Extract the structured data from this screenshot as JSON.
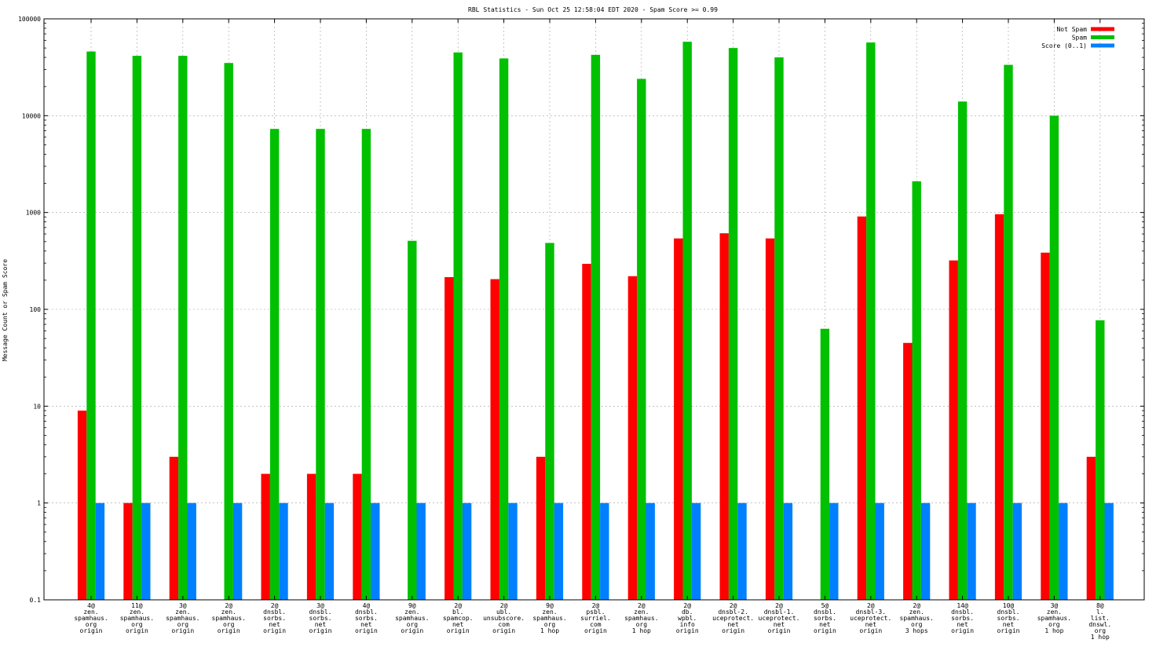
{
  "chart_data": {
    "type": "bar",
    "title": "RBL Statistics - Sun Oct 25 12:58:04 EDT 2020 - Spam Score >= 0.99",
    "xlabel": "",
    "ylabel": "Message Count or Spam Score",
    "yscale": "log",
    "ylim": [
      0.1,
      100000
    ],
    "yticks": [
      0.1,
      1,
      10,
      100,
      1000,
      10000,
      100000
    ],
    "ytick_labels": [
      "0.1",
      "1",
      "10",
      "100",
      "1000",
      "10000",
      "100000"
    ],
    "grid": true,
    "legend_position": "top-right",
    "categories": [
      [
        "4@",
        "zen.",
        "spamhaus.",
        "org",
        "origin"
      ],
      [
        "11@",
        "zen.",
        "spamhaus.",
        "org",
        "origin"
      ],
      [
        "3@",
        "zen.",
        "spamhaus.",
        "org",
        "origin"
      ],
      [
        "2@",
        "zen.",
        "spamhaus.",
        "org",
        "origin"
      ],
      [
        "2@",
        "dnsbl.",
        "sorbs.",
        "net",
        "origin"
      ],
      [
        "3@",
        "dnsbl.",
        "sorbs.",
        "net",
        "origin"
      ],
      [
        "4@",
        "dnsbl.",
        "sorbs.",
        "net",
        "origin"
      ],
      [
        "9@",
        "zen.",
        "spamhaus.",
        "org",
        "origin"
      ],
      [
        "2@",
        "bl.",
        "spamcop.",
        "net",
        "origin"
      ],
      [
        "2@",
        "ubl.",
        "unsubscore.",
        "com",
        "origin"
      ],
      [
        "9@",
        "zen.",
        "spamhaus.",
        "org",
        "1 hop"
      ],
      [
        "2@",
        "psbl.",
        "surriel.",
        "com",
        "origin"
      ],
      [
        "2@",
        "zen.",
        "spamhaus.",
        "org",
        "1 hop"
      ],
      [
        "2@",
        "db.",
        "wpbl.",
        "info",
        "origin"
      ],
      [
        "2@",
        "dnsbl-2.",
        "uceprotect.",
        "net",
        "origin"
      ],
      [
        "2@",
        "dnsbl-1.",
        "uceprotect.",
        "net",
        "origin"
      ],
      [
        "5@",
        "dnsbl.",
        "sorbs.",
        "net",
        "origin"
      ],
      [
        "2@",
        "dnsbl-3.",
        "uceprotect.",
        "net",
        "origin"
      ],
      [
        "2@",
        "zen.",
        "spamhaus.",
        "org",
        "3 hops"
      ],
      [
        "14@",
        "dnsbl.",
        "sorbs.",
        "net",
        "origin"
      ],
      [
        "10@",
        "dnsbl.",
        "sorbs.",
        "net",
        "origin"
      ],
      [
        "3@",
        "zen.",
        "spamhaus.",
        "org",
        "1 hop"
      ],
      [
        "8@",
        "l.",
        "list.",
        "dnswl.",
        "org",
        "1 hop"
      ]
    ],
    "series": [
      {
        "name": "Not Spam",
        "color": "#ff0000",
        "values": [
          9,
          1,
          3,
          null,
          2,
          2,
          2,
          null,
          215,
          205,
          3,
          295,
          220,
          540,
          610,
          540,
          null,
          910,
          45,
          320,
          960,
          385,
          3
        ]
      },
      {
        "name": "Spam",
        "color": "#00c000",
        "values": [
          46000,
          41500,
          41500,
          35000,
          7300,
          7300,
          7300,
          510,
          45000,
          39000,
          485,
          42500,
          24000,
          58000,
          50000,
          40000,
          63,
          57000,
          2100,
          14000,
          33500,
          10000,
          77
        ]
      },
      {
        "name": "Score (0..1)",
        "color": "#0080ff",
        "values": [
          1,
          1,
          1,
          1,
          1,
          1,
          1,
          1,
          1,
          1,
          1,
          1,
          1,
          1,
          1,
          1,
          1,
          1,
          1,
          1,
          1,
          1,
          1
        ]
      }
    ]
  }
}
